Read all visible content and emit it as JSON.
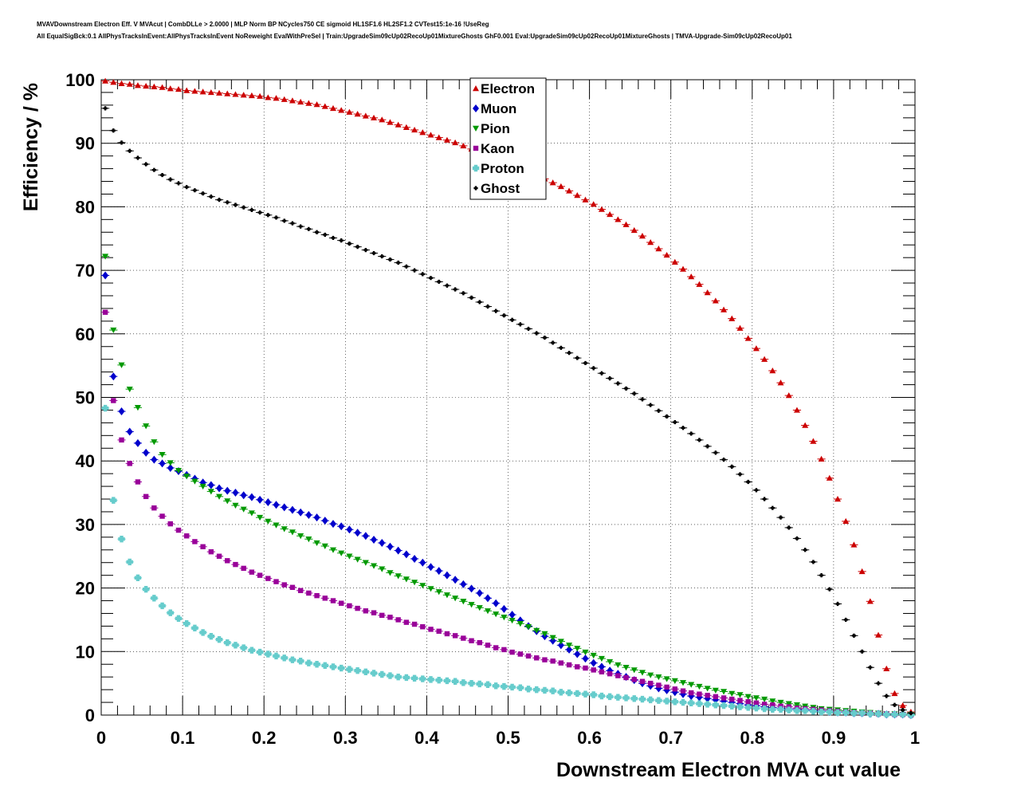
{
  "header": {
    "line1": "MVAVDownstream Electron Eff. V MVAcut | CombDLLe > 2.0000 | MLP Norm BP NCycles750 CE sigmoid HL1SF1.6 HL2SF1.2 CVTest15:1e-16 !UseReg",
    "line2": "All EqualSigBck:0.1 AllPhysTracksInEvent:AllPhysTracksInEvent NoReweight EvalWithPreSel | Train:UpgradeSim09cUp02RecoUp01MixtureGhosts GhF0.001 Eval:UpgradeSim09cUp02RecoUp01MixtureGhosts | TMVA-Upgrade-Sim09cUp02RecoUp01"
  },
  "chart_data": {
    "type": "scatter",
    "title": "",
    "xlabel": "Downstream Electron MVA cut value",
    "ylabel": "Efficiency / %",
    "xlim": [
      0,
      1
    ],
    "ylim": [
      0,
      100
    ],
    "grid": true,
    "legend_position": "top-center",
    "x_ticks": [
      "0",
      "0.1",
      "0.2",
      "0.3",
      "0.4",
      "0.5",
      "0.6",
      "0.7",
      "0.8",
      "0.9",
      "1"
    ],
    "y_ticks": [
      "0",
      "10",
      "20",
      "30",
      "40",
      "50",
      "60",
      "70",
      "80",
      "90",
      "100"
    ],
    "x": [
      0.005,
      0.015,
      0.025,
      0.035,
      0.045,
      0.055,
      0.065,
      0.075,
      0.085,
      0.095,
      0.105,
      0.115,
      0.125,
      0.135,
      0.145,
      0.155,
      0.165,
      0.175,
      0.185,
      0.195,
      0.205,
      0.215,
      0.225,
      0.235,
      0.245,
      0.255,
      0.265,
      0.275,
      0.285,
      0.295,
      0.305,
      0.315,
      0.325,
      0.335,
      0.345,
      0.355,
      0.365,
      0.375,
      0.385,
      0.395,
      0.405,
      0.415,
      0.425,
      0.435,
      0.445,
      0.455,
      0.465,
      0.475,
      0.485,
      0.495,
      0.505,
      0.515,
      0.525,
      0.535,
      0.545,
      0.555,
      0.565,
      0.575,
      0.585,
      0.595,
      0.605,
      0.615,
      0.625,
      0.635,
      0.645,
      0.655,
      0.665,
      0.675,
      0.685,
      0.695,
      0.705,
      0.715,
      0.725,
      0.735,
      0.745,
      0.755,
      0.765,
      0.775,
      0.785,
      0.795,
      0.805,
      0.815,
      0.825,
      0.835,
      0.845,
      0.855,
      0.865,
      0.875,
      0.885,
      0.895,
      0.905,
      0.915,
      0.925,
      0.935,
      0.945,
      0.955,
      0.965,
      0.975,
      0.985,
      0.995
    ],
    "series": [
      {
        "name": "Electron",
        "color": "#cc0000",
        "marker": "triangle-up",
        "values": [
          99.8,
          99.6,
          99.4,
          99.3,
          99.1,
          99.0,
          98.9,
          98.8,
          98.6,
          98.5,
          98.3,
          98.2,
          98.1,
          98.0,
          97.9,
          97.8,
          97.7,
          97.6,
          97.5,
          97.4,
          97.2,
          97.1,
          96.9,
          96.7,
          96.5,
          96.3,
          96.1,
          95.8,
          95.5,
          95.2,
          94.9,
          94.6,
          94.3,
          94.0,
          93.7,
          93.3,
          92.9,
          92.5,
          92.1,
          91.7,
          91.3,
          90.9,
          90.5,
          90.1,
          89.6,
          89.1,
          88.6,
          88.1,
          87.6,
          87.1,
          86.6,
          86.1,
          85.6,
          85.0,
          84.4,
          83.8,
          83.2,
          82.5,
          81.8,
          81.1,
          80.4,
          79.6,
          78.8,
          78.0,
          77.2,
          76.3,
          75.4,
          74.4,
          73.4,
          72.4,
          71.3,
          70.2,
          69.0,
          67.8,
          66.5,
          65.2,
          63.8,
          62.4,
          60.9,
          59.3,
          57.7,
          56.0,
          54.2,
          52.3,
          50.3,
          48.0,
          45.6,
          43.1,
          40.3,
          37.3,
          34.0,
          30.5,
          26.8,
          22.6,
          17.9,
          12.6,
          7.3,
          3.4,
          1.5,
          0.5
        ]
      },
      {
        "name": "Muon",
        "color": "#0000cc",
        "marker": "diamond",
        "values": [
          69.2,
          53.3,
          47.8,
          44.6,
          42.8,
          41.3,
          40.2,
          39.6,
          38.9,
          38.4,
          37.8,
          37.2,
          36.6,
          36.2,
          35.7,
          35.3,
          35.0,
          34.6,
          34.3,
          33.9,
          33.5,
          33.1,
          32.7,
          32.3,
          31.9,
          31.5,
          31.1,
          30.6,
          30.1,
          29.7,
          29.2,
          28.7,
          28.2,
          27.6,
          27.1,
          26.5,
          25.9,
          25.3,
          24.6,
          24.0,
          23.3,
          22.7,
          22.0,
          21.3,
          20.6,
          19.9,
          19.2,
          18.4,
          17.6,
          16.7,
          15.8,
          14.9,
          14.0,
          13.2,
          12.4,
          11.7,
          11.0,
          10.3,
          9.6,
          8.9,
          8.2,
          7.6,
          7.0,
          6.5,
          6.0,
          5.5,
          5.0,
          4.6,
          4.2,
          3.9,
          3.6,
          3.3,
          3.0,
          2.8,
          2.6,
          2.4,
          2.2,
          2.0,
          1.8,
          1.6,
          1.5,
          1.3,
          1.2,
          1.1,
          1.0,
          0.9,
          0.8,
          0.7,
          0.6,
          0.5,
          0.4,
          0.4,
          0.3,
          0.3,
          0.2,
          0.2,
          0.1,
          0.1,
          0.1,
          0.0
        ]
      },
      {
        "name": "Pion",
        "color": "#009900",
        "marker": "triangle-down",
        "values": [
          72.2,
          60.6,
          55.1,
          51.3,
          48.4,
          45.5,
          43.0,
          41.0,
          39.7,
          38.5,
          37.6,
          36.8,
          36.0,
          35.2,
          34.4,
          33.7,
          33.0,
          32.4,
          31.8,
          31.1,
          30.5,
          29.9,
          29.3,
          28.8,
          28.2,
          27.7,
          27.1,
          26.6,
          26.0,
          25.5,
          25.0,
          24.5,
          24.0,
          23.5,
          23.0,
          22.4,
          21.9,
          21.4,
          20.9,
          20.4,
          19.9,
          19.4,
          18.9,
          18.4,
          17.9,
          17.4,
          16.9,
          16.4,
          15.9,
          15.4,
          14.9,
          14.4,
          13.9,
          13.3,
          12.8,
          12.2,
          11.6,
          11.0,
          10.5,
          9.9,
          9.4,
          8.9,
          8.4,
          7.9,
          7.5,
          7.1,
          6.7,
          6.3,
          6.0,
          5.7,
          5.4,
          5.1,
          4.8,
          4.5,
          4.2,
          3.9,
          3.7,
          3.4,
          3.2,
          2.9,
          2.7,
          2.5,
          2.2,
          2.0,
          1.8,
          1.6,
          1.4,
          1.2,
          1.0,
          0.9,
          0.8,
          0.7,
          0.6,
          0.5,
          0.4,
          0.3,
          0.2,
          0.2,
          0.1,
          0.1
        ]
      },
      {
        "name": "Kaon",
        "color": "#990099",
        "marker": "square",
        "values": [
          63.4,
          49.5,
          43.3,
          39.6,
          36.7,
          34.4,
          32.6,
          31.3,
          30.1,
          29.1,
          28.2,
          27.3,
          26.5,
          25.7,
          25.0,
          24.3,
          23.7,
          23.1,
          22.5,
          22.0,
          21.5,
          21.0,
          20.5,
          20.1,
          19.6,
          19.2,
          18.8,
          18.4,
          18.0,
          17.6,
          17.2,
          16.8,
          16.4,
          16.1,
          15.7,
          15.4,
          15.0,
          14.6,
          14.3,
          13.9,
          13.5,
          13.2,
          12.8,
          12.5,
          12.1,
          11.7,
          11.4,
          11.0,
          10.6,
          10.3,
          9.9,
          9.6,
          9.3,
          9.0,
          8.7,
          8.5,
          8.2,
          7.9,
          7.6,
          7.4,
          7.1,
          6.8,
          6.5,
          6.2,
          5.9,
          5.6,
          5.3,
          5.0,
          4.7,
          4.4,
          4.1,
          3.8,
          3.5,
          3.3,
          3.1,
          2.9,
          2.7,
          2.5,
          2.3,
          2.1,
          1.9,
          1.7,
          1.6,
          1.4,
          1.3,
          1.1,
          1.0,
          0.9,
          0.8,
          0.7,
          0.6,
          0.5,
          0.4,
          0.3,
          0.3,
          0.2,
          0.2,
          0.1,
          0.1,
          0.0
        ]
      },
      {
        "name": "Proton",
        "color": "#66cccc",
        "marker": "cross",
        "values": [
          48.3,
          33.8,
          27.7,
          24.1,
          21.6,
          19.8,
          18.4,
          17.2,
          16.1,
          15.2,
          14.4,
          13.7,
          13.0,
          12.4,
          11.9,
          11.4,
          11.0,
          10.6,
          10.2,
          9.9,
          9.6,
          9.3,
          9.0,
          8.7,
          8.5,
          8.2,
          8.0,
          7.8,
          7.6,
          7.4,
          7.2,
          7.0,
          6.8,
          6.6,
          6.4,
          6.2,
          6.0,
          5.9,
          5.8,
          5.7,
          5.6,
          5.5,
          5.4,
          5.3,
          5.1,
          5.0,
          4.9,
          4.8,
          4.6,
          4.5,
          4.4,
          4.3,
          4.1,
          4.0,
          3.9,
          3.8,
          3.6,
          3.5,
          3.4,
          3.3,
          3.2,
          3.0,
          2.9,
          2.8,
          2.7,
          2.6,
          2.5,
          2.4,
          2.3,
          2.2,
          2.1,
          2.0,
          1.9,
          1.8,
          1.7,
          1.6,
          1.5,
          1.4,
          1.3,
          1.2,
          1.1,
          1.0,
          0.9,
          0.9,
          0.8,
          0.7,
          0.7,
          0.6,
          0.5,
          0.5,
          0.4,
          0.4,
          0.3,
          0.3,
          0.2,
          0.2,
          0.1,
          0.1,
          0.1,
          0.0
        ]
      },
      {
        "name": "Ghost",
        "color": "#000000",
        "marker": "cross",
        "values": [
          95.5,
          92.0,
          90.1,
          88.8,
          87.7,
          86.7,
          85.8,
          85.0,
          84.3,
          83.7,
          83.1,
          82.6,
          82.1,
          81.6,
          81.1,
          80.7,
          80.3,
          79.9,
          79.5,
          79.1,
          78.7,
          78.3,
          77.8,
          77.4,
          76.9,
          76.5,
          76.0,
          75.6,
          75.1,
          74.7,
          74.2,
          73.7,
          73.2,
          72.7,
          72.2,
          71.7,
          71.2,
          70.6,
          70.0,
          69.4,
          68.8,
          68.2,
          67.6,
          67.0,
          66.4,
          65.7,
          65.0,
          64.3,
          63.6,
          62.9,
          62.2,
          61.5,
          60.8,
          60.1,
          59.4,
          58.6,
          57.8,
          57.0,
          56.2,
          55.4,
          54.6,
          53.8,
          53.0,
          52.2,
          51.4,
          50.6,
          49.7,
          48.8,
          47.9,
          47.0,
          46.1,
          45.2,
          44.3,
          43.3,
          42.3,
          41.3,
          40.2,
          39.1,
          37.9,
          36.7,
          35.4,
          34.0,
          32.6,
          31.1,
          29.5,
          27.8,
          26.0,
          24.1,
          22.0,
          19.8,
          17.5,
          15.0,
          12.5,
          10.0,
          7.5,
          5.0,
          3.0,
          1.6,
          0.8,
          0.3
        ]
      }
    ]
  }
}
